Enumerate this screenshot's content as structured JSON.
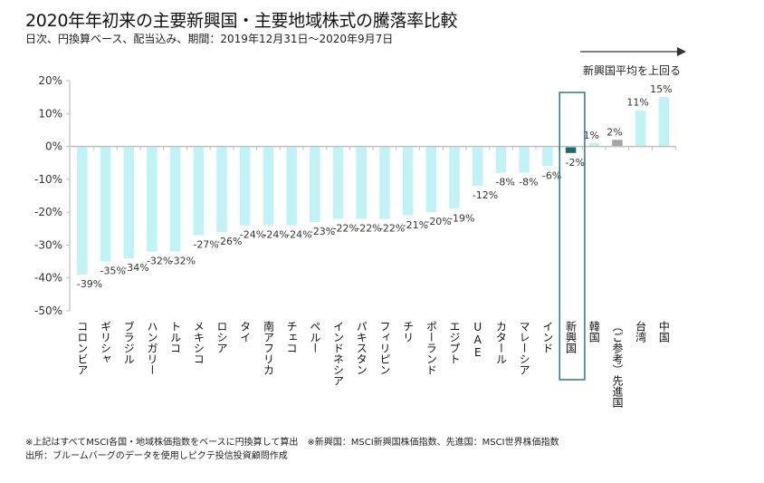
{
  "title": "2020年年初来の主要新興国・主要地域株式の騰落率比較",
  "subtitle": "日次、円換算ベース、配当込み、期間：2019年12月31日～2020年9月7日",
  "notes": [
    "※上記はすべてMSCI各国・地域株価指数をベースに円換算して算出　※新興国：MSCI新興国株価指数、先進国：MSCI世界株価指数",
    "出所：ブルームバーグのデータを使用しピクテ投信投資顧問作成"
  ],
  "chart_data": {
    "type": "bar",
    "title": "2020年年初来の主要新興国・主要地域株式の騰落率比較",
    "xlabel": "",
    "ylabel": "",
    "ylim": [
      -50,
      20
    ],
    "yticks": [
      20,
      10,
      0,
      -10,
      -20,
      -30,
      -40,
      -50
    ],
    "ytick_labels": [
      "20%",
      "10%",
      "0%",
      "-10%",
      "-20%",
      "-30%",
      "-40%",
      "-50%"
    ],
    "grid": false,
    "categories": [
      "コロンビア",
      "ギリシャ",
      "ブラジル",
      "ハンガリー",
      "トルコ",
      "メキシコ",
      "ロシア",
      "タイ",
      "南アフリカ",
      "チェコ",
      "ペルー",
      "インドネシア",
      "パキスタン",
      "フィリピン",
      "チリ",
      "ポーランド",
      "エジプト",
      "UAE",
      "カタール",
      "マレーシア",
      "インド",
      "新興国",
      "韓国",
      "（ご参考）先進国",
      "台湾",
      "中国"
    ],
    "values": [
      -39,
      -35,
      -34,
      -32,
      -32,
      -27,
      -26,
      -24,
      -24,
      -24,
      -23,
      -22,
      -22,
      -22,
      -21,
      -20,
      -19,
      -12,
      -8,
      -8,
      -6,
      -2,
      1,
      2,
      11,
      15
    ],
    "data_labels": [
      "-39%",
      "-35%",
      "-34%",
      "-32%",
      "-32%",
      "-27%",
      "-26%",
      "-24%",
      "-24%",
      "-24%",
      "-23%",
      "-22%",
      "-22%",
      "-22%",
      "-21%",
      "-20%",
      "-19%",
      "-12%",
      "-8%",
      "-8%",
      "-6%",
      "-2%",
      "1%",
      "2%",
      "11%",
      "15%"
    ],
    "bar_colors": {
      "default": "#bff3f5",
      "新興国": "#1a6b6b",
      "（ご参考）先進国": "#a6a6a6"
    },
    "highlight_category": "新興国",
    "highlight_box_color": "#2e7b78",
    "annotation": {
      "text": "新興国平均を上回る",
      "arrow_direction": "right",
      "position": "top-right"
    }
  }
}
